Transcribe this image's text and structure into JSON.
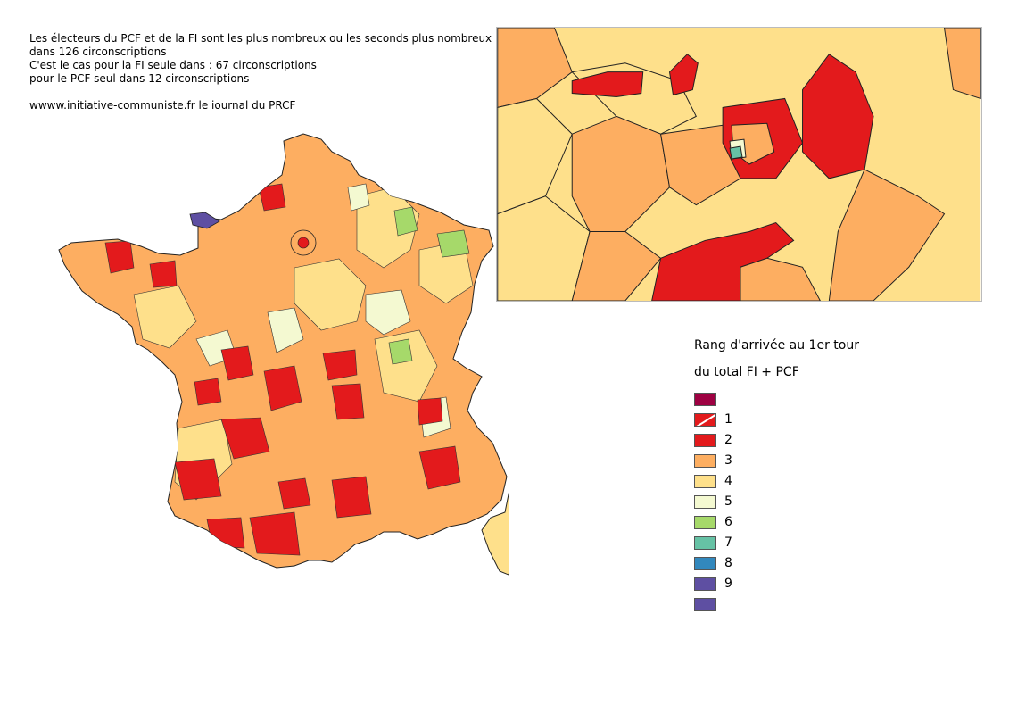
{
  "header": {
    "line1": "Les électeurs du PCF et de la FI sont les plus nombreux ou les seconds plus nombreux",
    "line2": "dans 126 circonscriptions",
    "line3": "C'est le cas pour la FI seule dans : 67 circonscriptions",
    "line4": "pour le PCF seul dans 12 circonscriptions",
    "url": "wwww.initiative-communiste.fr le journal du PRCF"
  },
  "legend": {
    "title1": "Rang d'arrivée au 1er tour",
    "title2": "du total FI + PCF",
    "items": [
      {
        "label": "",
        "color": "#9e0142",
        "hatched": false
      },
      {
        "label": "1",
        "color": "#e31a1c",
        "hatched": true
      },
      {
        "label": "2",
        "color": "#e31a1c",
        "hatched": false
      },
      {
        "label": "3",
        "color": "#fdae61",
        "hatched": false
      },
      {
        "label": "4",
        "color": "#fee08b",
        "hatched": false
      },
      {
        "label": "5",
        "color": "#f4f9d1",
        "hatched": false
      },
      {
        "label": "6",
        "color": "#a6d96a",
        "hatched": false
      },
      {
        "label": "7",
        "color": "#66c2a5",
        "hatched": false
      },
      {
        "label": "8",
        "color": "#3288bd",
        "hatched": false
      },
      {
        "label": "9",
        "color": "#5e4fa2",
        "hatched": false
      },
      {
        "label": "",
        "color": "#5e4fa2",
        "hatched": false
      }
    ]
  },
  "map": {
    "region_colors": {
      "rank2": "#e31a1c",
      "rank3": "#fdae61",
      "rank4": "#fee08b",
      "rank5": "#f4f9d1",
      "rank6": "#a6d96a",
      "rank7": "#66c2a5",
      "rank9": "#5e4fa2",
      "border": "#222222"
    }
  }
}
